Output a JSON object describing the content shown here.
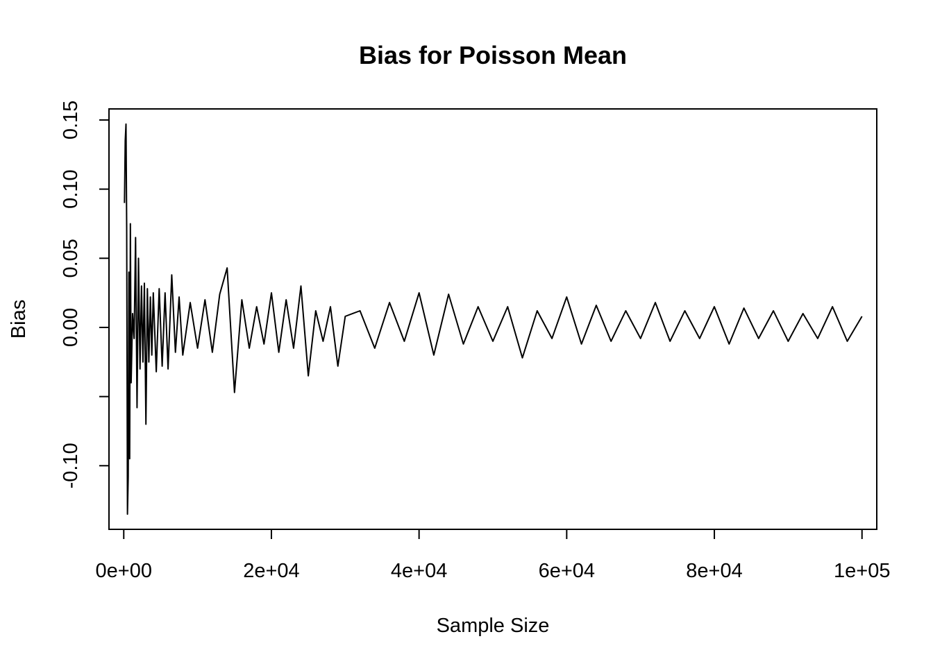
{
  "chart_data": {
    "type": "line",
    "title": "Bias for Poisson Mean",
    "xlabel": "Sample Size",
    "ylabel": "Bias",
    "xlim": [
      -2000,
      102000
    ],
    "ylim": [
      -0.146,
      0.158
    ],
    "x_ticks": [
      {
        "value": 0,
        "label": "0e+00"
      },
      {
        "value": 20000,
        "label": "2e+04"
      },
      {
        "value": 40000,
        "label": "4e+04"
      },
      {
        "value": 60000,
        "label": "6e+04"
      },
      {
        "value": 80000,
        "label": "8e+04"
      },
      {
        "value": 100000,
        "label": "1e+05"
      }
    ],
    "y_ticks": [
      {
        "value": -0.1,
        "label": "-0.10"
      },
      {
        "value": -0.05,
        "label": ""
      },
      {
        "value": 0.0,
        "label": "0.00"
      },
      {
        "value": 0.05,
        "label": "0.05"
      },
      {
        "value": 0.1,
        "label": "0.10"
      },
      {
        "value": 0.15,
        "label": "0.15"
      }
    ],
    "grid": false,
    "series": [
      {
        "color": "#000000",
        "x": [
          100,
          200,
          300,
          400,
          500,
          600,
          700,
          800,
          900,
          1000,
          1200,
          1400,
          1600,
          1800,
          2000,
          2200,
          2400,
          2600,
          2800,
          3000,
          3200,
          3400,
          3600,
          3800,
          4000,
          4400,
          4800,
          5200,
          5600,
          6000,
          6500,
          7000,
          7500,
          8000,
          9000,
          10000,
          11000,
          12000,
          13000,
          14000,
          15000,
          16000,
          17000,
          18000,
          19000,
          20000,
          21000,
          22000,
          23000,
          24000,
          25000,
          26000,
          27000,
          28000,
          29000,
          30000,
          32000,
          34000,
          36000,
          38000,
          40000,
          42000,
          44000,
          46000,
          48000,
          50000,
          52000,
          54000,
          56000,
          58000,
          60000,
          62000,
          64000,
          66000,
          68000,
          70000,
          72000,
          74000,
          76000,
          78000,
          80000,
          82000,
          84000,
          86000,
          88000,
          90000,
          92000,
          94000,
          96000,
          98000,
          100000
        ],
        "values": [
          0.09,
          0.135,
          0.147,
          0.072,
          -0.135,
          -0.108,
          0.04,
          -0.095,
          0.075,
          -0.04,
          0.01,
          -0.008,
          0.065,
          -0.058,
          0.05,
          -0.03,
          0.03,
          -0.025,
          0.032,
          -0.07,
          0.028,
          -0.025,
          0.022,
          -0.02,
          0.025,
          -0.032,
          0.028,
          -0.028,
          0.025,
          -0.03,
          0.038,
          -0.018,
          0.022,
          -0.02,
          0.018,
          -0.015,
          0.02,
          -0.018,
          0.024,
          0.043,
          -0.047,
          0.02,
          -0.015,
          0.015,
          -0.012,
          0.025,
          -0.018,
          0.02,
          -0.015,
          0.03,
          -0.035,
          0.012,
          -0.01,
          0.015,
          -0.028,
          0.008,
          0.012,
          -0.015,
          0.018,
          -0.01,
          0.025,
          -0.02,
          0.024,
          -0.012,
          0.015,
          -0.01,
          0.015,
          -0.022,
          0.012,
          -0.008,
          0.022,
          -0.012,
          0.016,
          -0.01,
          0.012,
          -0.008,
          0.018,
          -0.01,
          0.012,
          -0.008,
          0.015,
          -0.012,
          0.014,
          -0.008,
          0.012,
          -0.01,
          0.01,
          -0.008,
          0.015,
          -0.01,
          0.008
        ]
      }
    ]
  }
}
